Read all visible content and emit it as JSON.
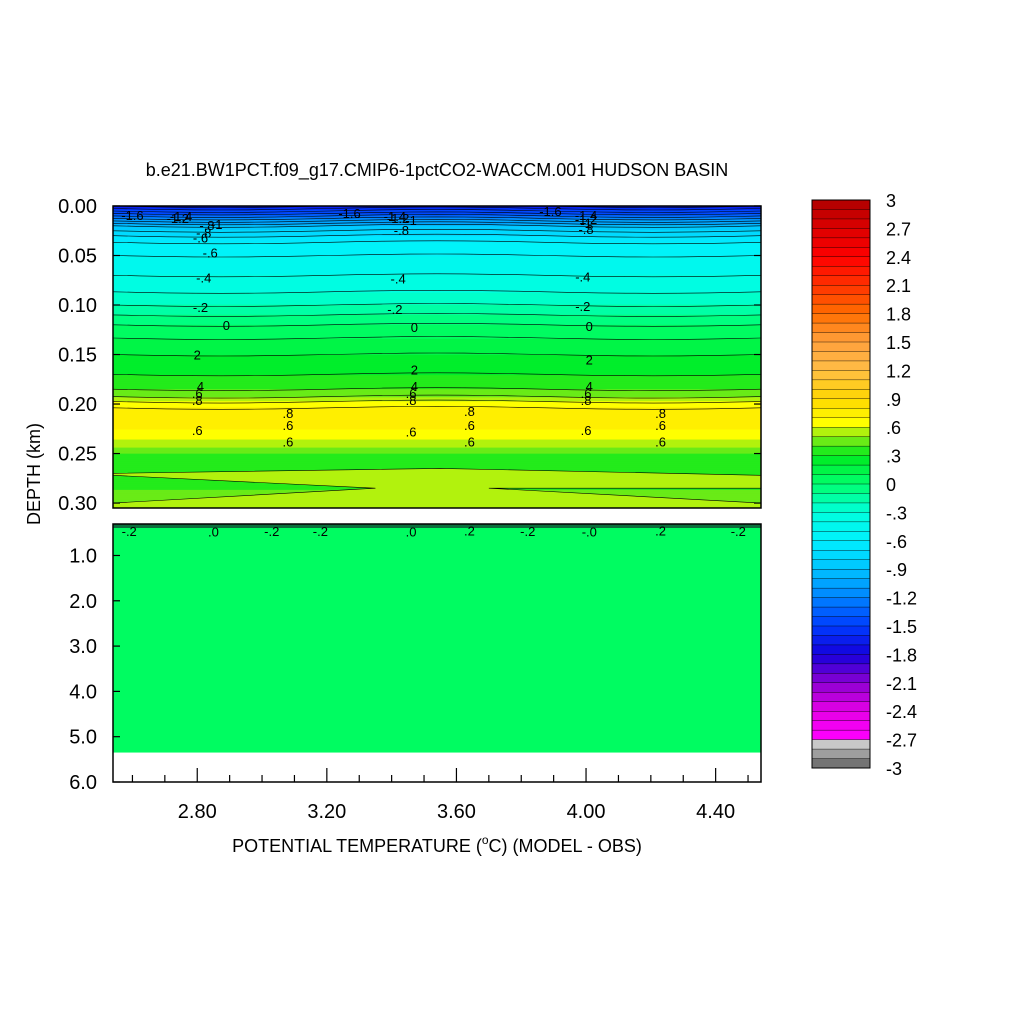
{
  "chart_data": {
    "type": "heatmap",
    "title": "b.e21.BW1PCT.f09_g17.CMIP6-1pctCO2-WACCM.001 HUDSON BASIN",
    "xlabel_prefix": "POTENTIAL TEMPERATURE (",
    "xlabel_sup": "o",
    "xlabel_suffix": "C) (MODEL - OBS)",
    "ylabel": "DEPTH (km)",
    "x_ticks": [
      "2.80",
      "3.20",
      "3.60",
      "4.00",
      "4.40"
    ],
    "x_tick_values": [
      2.8,
      3.2,
      3.6,
      4.0,
      4.4
    ],
    "xlim": [
      2.54,
      4.54
    ],
    "upper_panel": {
      "ylim": [
        0.0,
        0.305
      ],
      "y_ticks": [
        "0.00",
        "0.05",
        "0.10",
        "0.15",
        "0.20",
        "0.25",
        "0.30"
      ],
      "y_tick_values": [
        0.0,
        0.05,
        0.1,
        0.15,
        0.2,
        0.25,
        0.3
      ],
      "profile_depths": [
        0.0,
        0.01,
        0.02,
        0.03,
        0.04,
        0.05,
        0.06,
        0.08,
        0.1,
        0.12,
        0.14,
        0.16,
        0.18,
        0.19,
        0.2,
        0.21,
        0.22,
        0.23,
        0.24,
        0.25,
        0.27,
        0.29,
        0.305
      ],
      "profile_values": [
        -1.7,
        -1.3,
        -0.9,
        -0.7,
        -0.55,
        -0.5,
        -0.45,
        -0.35,
        -0.2,
        0.0,
        0.15,
        0.25,
        0.35,
        0.45,
        0.65,
        0.78,
        0.75,
        0.65,
        0.55,
        0.4,
        0.3,
        0.42,
        0.45
      ]
    },
    "lower_panel": {
      "ylim": [
        0.305,
        6.0
      ],
      "y_ticks": [
        "1.0",
        "2.0",
        "3.0",
        "4.0",
        "5.0",
        "6.0"
      ],
      "y_tick_values": [
        1.0,
        2.0,
        3.0,
        4.0,
        5.0,
        6.0
      ],
      "data_bottom_depth": 5.35,
      "deep_value": 0.05
    },
    "contour_labels": [
      {
        "text": "-1.6",
        "x": 2.6,
        "depth": 0.01
      },
      {
        "text": "-1.2",
        "x": 2.74,
        "depth": 0.013
      },
      {
        "text": "-1.4",
        "x": 2.75,
        "depth": 0.011
      },
      {
        "text": "-.8",
        "x": 2.83,
        "depth": 0.02
      },
      {
        "text": "-1",
        "x": 2.86,
        "depth": 0.019
      },
      {
        "text": "-.8",
        "x": 2.82,
        "depth": 0.028
      },
      {
        "text": "-.6",
        "x": 2.81,
        "depth": 0.033
      },
      {
        "text": "-.6",
        "x": 2.84,
        "depth": 0.048
      },
      {
        "text": "-.4",
        "x": 2.82,
        "depth": 0.073
      },
      {
        "text": "-.2",
        "x": 2.81,
        "depth": 0.103
      },
      {
        "text": "0",
        "x": 2.89,
        "depth": 0.121
      },
      {
        "text": "2",
        "x": 2.8,
        "depth": 0.151
      },
      {
        "text": "4",
        "x": 2.81,
        "depth": 0.183
      },
      {
        "text": ".6",
        "x": 2.8,
        "depth": 0.19
      },
      {
        "text": ".8",
        "x": 2.8,
        "depth": 0.197
      },
      {
        "text": ".6",
        "x": 2.8,
        "depth": 0.227
      },
      {
        "text": ".8",
        "x": 3.08,
        "depth": 0.21
      },
      {
        "text": ".6",
        "x": 3.08,
        "depth": 0.222
      },
      {
        "text": ".6",
        "x": 3.08,
        "depth": 0.239
      },
      {
        "text": "-1.6",
        "x": 3.27,
        "depth": 0.008
      },
      {
        "text": "-1.4",
        "x": 3.41,
        "depth": 0.011
      },
      {
        "text": "-1.2",
        "x": 3.42,
        "depth": 0.013
      },
      {
        "text": "-1",
        "x": 3.46,
        "depth": 0.015
      },
      {
        "text": "-.8",
        "x": 3.43,
        "depth": 0.025
      },
      {
        "text": "-.4",
        "x": 3.42,
        "depth": 0.074
      },
      {
        "text": "-.2",
        "x": 3.41,
        "depth": 0.105
      },
      {
        "text": "0",
        "x": 3.47,
        "depth": 0.123
      },
      {
        "text": "2",
        "x": 3.47,
        "depth": 0.166
      },
      {
        "text": "4",
        "x": 3.47,
        "depth": 0.183
      },
      {
        "text": ".6",
        "x": 3.46,
        "depth": 0.19
      },
      {
        "text": ".8",
        "x": 3.46,
        "depth": 0.197
      },
      {
        "text": ".6",
        "x": 3.46,
        "depth": 0.229
      },
      {
        "text": ".8",
        "x": 3.64,
        "depth": 0.208
      },
      {
        "text": ".6",
        "x": 3.64,
        "depth": 0.222
      },
      {
        "text": ".6",
        "x": 3.64,
        "depth": 0.239
      },
      {
        "text": "-1.6",
        "x": 3.89,
        "depth": 0.006
      },
      {
        "text": "-1.4",
        "x": 4.0,
        "depth": 0.01
      },
      {
        "text": "-1.2",
        "x": 4.0,
        "depth": 0.014
      },
      {
        "text": "-1",
        "x": 4.0,
        "depth": 0.018
      },
      {
        "text": "-.8",
        "x": 4.0,
        "depth": 0.024
      },
      {
        "text": "-.4",
        "x": 3.99,
        "depth": 0.072
      },
      {
        "text": "-.2",
        "x": 3.99,
        "depth": 0.102
      },
      {
        "text": "0",
        "x": 4.01,
        "depth": 0.122
      },
      {
        "text": "2",
        "x": 4.01,
        "depth": 0.156
      },
      {
        "text": "4",
        "x": 4.01,
        "depth": 0.183
      },
      {
        "text": ".6",
        "x": 4.0,
        "depth": 0.19
      },
      {
        "text": ".8",
        "x": 4.0,
        "depth": 0.197
      },
      {
        "text": ".6",
        "x": 4.0,
        "depth": 0.227
      },
      {
        "text": ".8",
        "x": 4.23,
        "depth": 0.21
      },
      {
        "text": ".6",
        "x": 4.23,
        "depth": 0.222
      },
      {
        "text": ".6",
        "x": 4.23,
        "depth": 0.239
      }
    ],
    "lower_contour_labels": [
      {
        "text": "-.2",
        "x": 2.59,
        "depth": 0.33
      },
      {
        "text": ".0",
        "x": 2.85,
        "depth": 0.34
      },
      {
        "text": "-.2",
        "x": 3.03,
        "depth": 0.33
      },
      {
        "text": "-.2",
        "x": 3.18,
        "depth": 0.33
      },
      {
        "text": ".0",
        "x": 3.46,
        "depth": 0.34
      },
      {
        "text": ".2",
        "x": 3.64,
        "depth": 0.32
      },
      {
        "text": "-.2",
        "x": 3.82,
        "depth": 0.33
      },
      {
        "text": "-.0",
        "x": 4.01,
        "depth": 0.34
      },
      {
        "text": ".2",
        "x": 4.23,
        "depth": 0.32
      },
      {
        "text": "-.2",
        "x": 4.47,
        "depth": 0.33
      }
    ],
    "colorbar": {
      "min": -3,
      "max": 3,
      "step": 0.1,
      "labels": [
        "3",
        "2.7",
        "2.4",
        "2.1",
        "1.8",
        "1.5",
        "1.2",
        ".9",
        ".6",
        ".3",
        "0",
        "-.3",
        "-.6",
        "-.9",
        "-1.2",
        "-1.5",
        "-1.8",
        "-2.1",
        "-2.4",
        "-2.7",
        "-3"
      ],
      "label_values": [
        3,
        2.7,
        2.4,
        2.1,
        1.8,
        1.5,
        1.2,
        0.9,
        0.6,
        0.3,
        0,
        -0.3,
        -0.6,
        -0.9,
        -1.2,
        -1.5,
        -1.8,
        -2.1,
        -2.4,
        -2.7,
        -3
      ]
    }
  }
}
